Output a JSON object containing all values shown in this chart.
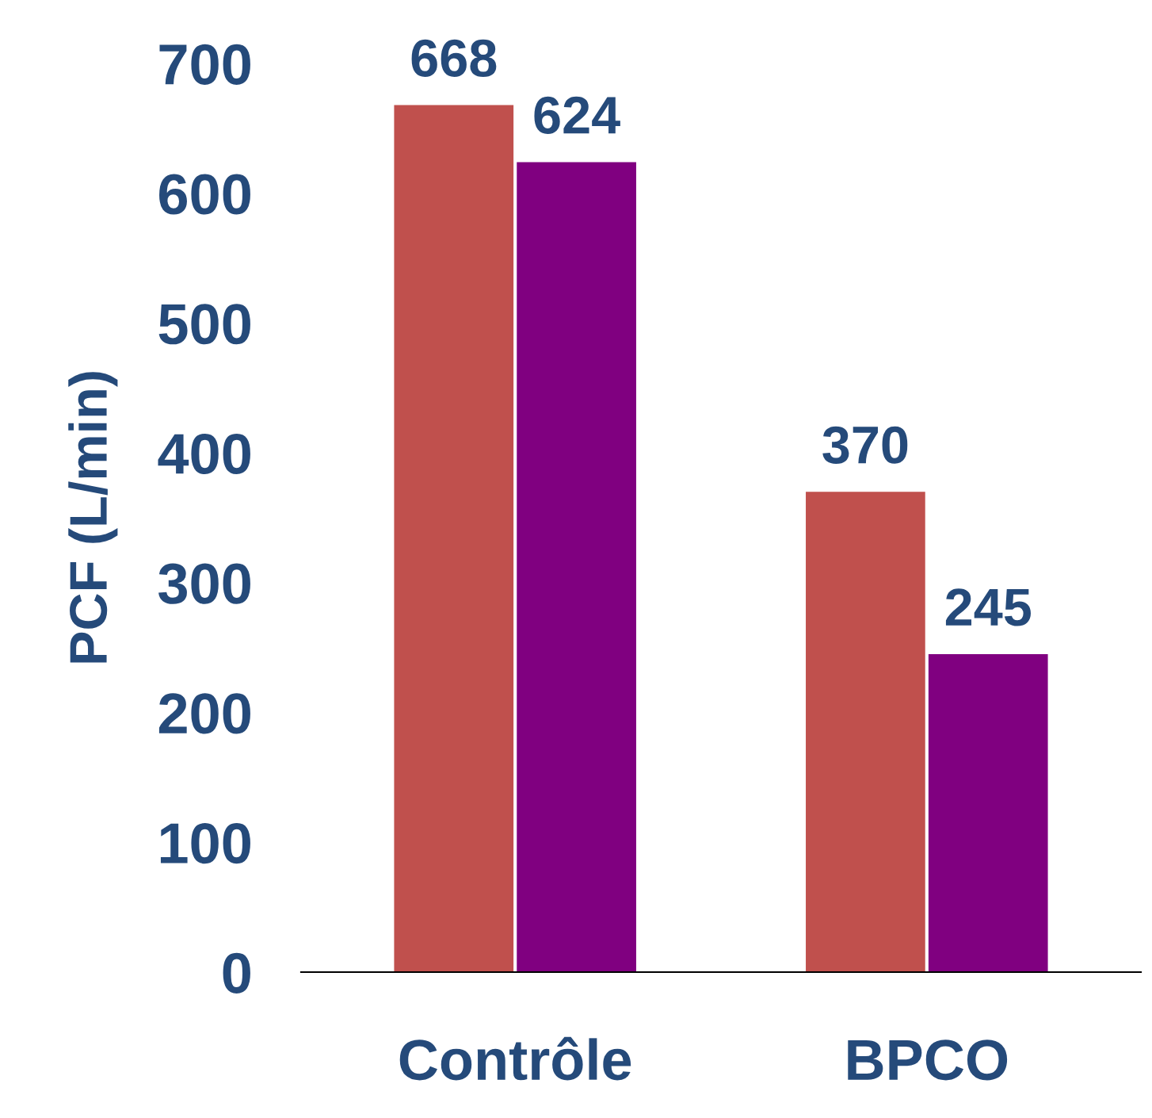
{
  "chart_data": {
    "type": "bar",
    "ylabel": "PCF (L/min)",
    "categories": [
      "Contrôle",
      "BPCO"
    ],
    "series": [
      {
        "color": "#c0504d",
        "values": [
          668,
          370
        ]
      },
      {
        "color": "#800080",
        "values": [
          624,
          245
        ]
      }
    ],
    "ylim": [
      0,
      700
    ],
    "yticks": [
      0,
      100,
      200,
      300,
      400,
      500,
      600,
      700
    ],
    "data_labels": true
  }
}
